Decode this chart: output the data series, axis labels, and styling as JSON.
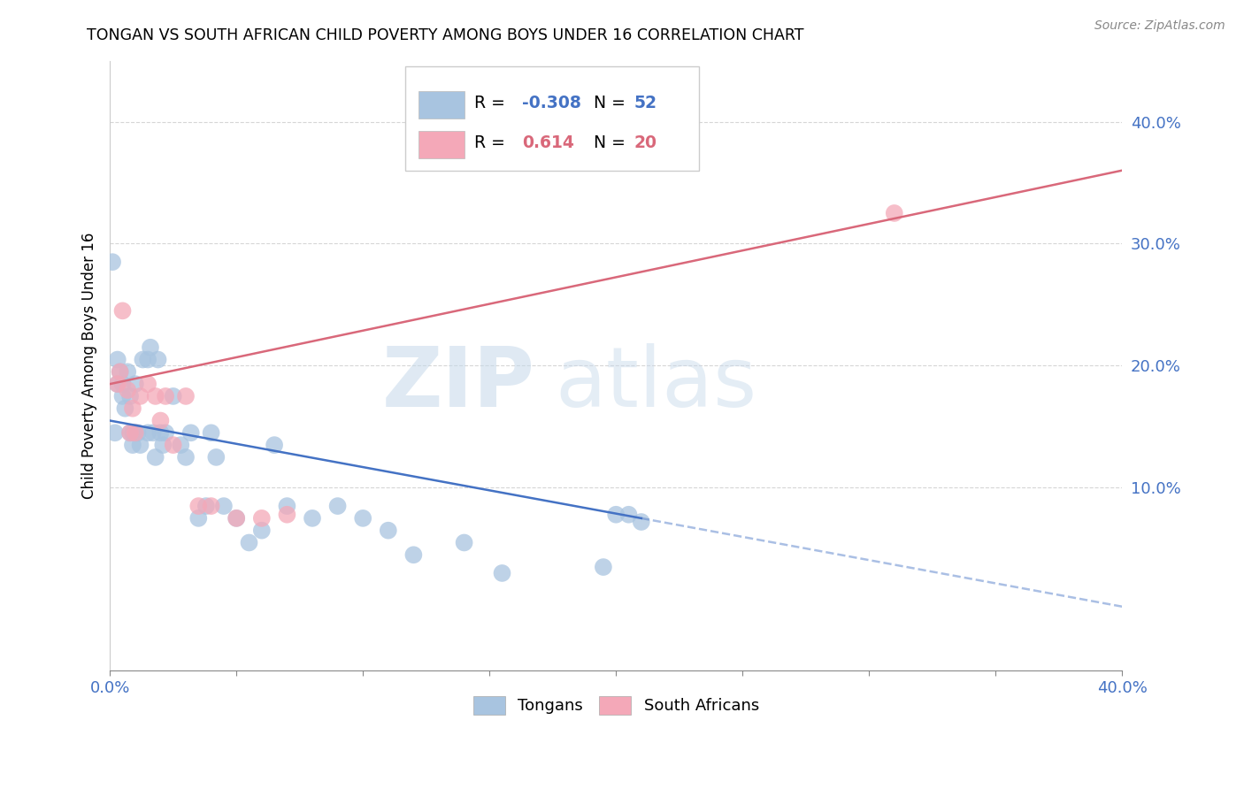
{
  "title": "TONGAN VS SOUTH AFRICAN CHILD POVERTY AMONG BOYS UNDER 16 CORRELATION CHART",
  "source": "Source: ZipAtlas.com",
  "ylabel_label": "Child Poverty Among Boys Under 16",
  "xlim": [
    0.0,
    0.4
  ],
  "ylim": [
    -0.05,
    0.45
  ],
  "tongan_R": -0.308,
  "tongan_N": 52,
  "sa_R": 0.614,
  "sa_N": 20,
  "tongan_color": "#a8c4e0",
  "sa_color": "#f4a8b8",
  "tongan_line_color": "#4472c4",
  "sa_line_color": "#d9687a",
  "tick_color": "#4472c4",
  "watermark_zip_color": "#c8d8e8",
  "watermark_atlas_color": "#c8d8e8",
  "legend_label_1": "Tongans",
  "legend_label_2": "South Africans",
  "tongan_x": [
    0.001,
    0.002,
    0.003,
    0.003,
    0.004,
    0.005,
    0.005,
    0.006,
    0.007,
    0.008,
    0.008,
    0.009,
    0.009,
    0.01,
    0.01,
    0.011,
    0.012,
    0.013,
    0.015,
    0.015,
    0.016,
    0.017,
    0.018,
    0.019,
    0.02,
    0.021,
    0.022,
    0.025,
    0.028,
    0.03,
    0.032,
    0.035,
    0.038,
    0.04,
    0.042,
    0.045,
    0.05,
    0.055,
    0.06,
    0.065,
    0.07,
    0.08,
    0.09,
    0.1,
    0.11,
    0.12,
    0.14,
    0.155,
    0.195,
    0.2,
    0.205,
    0.21
  ],
  "tongan_y": [
    0.285,
    0.145,
    0.185,
    0.205,
    0.195,
    0.175,
    0.185,
    0.165,
    0.195,
    0.145,
    0.175,
    0.145,
    0.135,
    0.145,
    0.185,
    0.145,
    0.135,
    0.205,
    0.145,
    0.205,
    0.215,
    0.145,
    0.125,
    0.205,
    0.145,
    0.135,
    0.145,
    0.175,
    0.135,
    0.125,
    0.145,
    0.075,
    0.085,
    0.145,
    0.125,
    0.085,
    0.075,
    0.055,
    0.065,
    0.135,
    0.085,
    0.075,
    0.085,
    0.075,
    0.065,
    0.045,
    0.055,
    0.03,
    0.035,
    0.078,
    0.078,
    0.072
  ],
  "sa_x": [
    0.003,
    0.004,
    0.005,
    0.007,
    0.008,
    0.009,
    0.01,
    0.012,
    0.015,
    0.018,
    0.02,
    0.022,
    0.025,
    0.03,
    0.035,
    0.04,
    0.05,
    0.06,
    0.07,
    0.31
  ],
  "sa_y": [
    0.185,
    0.195,
    0.245,
    0.18,
    0.145,
    0.165,
    0.145,
    0.175,
    0.185,
    0.175,
    0.155,
    0.175,
    0.135,
    0.175,
    0.085,
    0.085,
    0.075,
    0.075,
    0.078,
    0.325
  ],
  "tongan_line_x0": 0.0,
  "tongan_line_x1": 0.21,
  "tongan_line_dash_x0": 0.21,
  "tongan_line_dash_x1": 0.4,
  "sa_line_x0": 0.0,
  "sa_line_x1": 0.4,
  "tongan_line_y_at_0": 0.155,
  "tongan_line_y_at_021": 0.075,
  "sa_line_y_at_0": 0.185,
  "sa_line_y_at_040": 0.36
}
